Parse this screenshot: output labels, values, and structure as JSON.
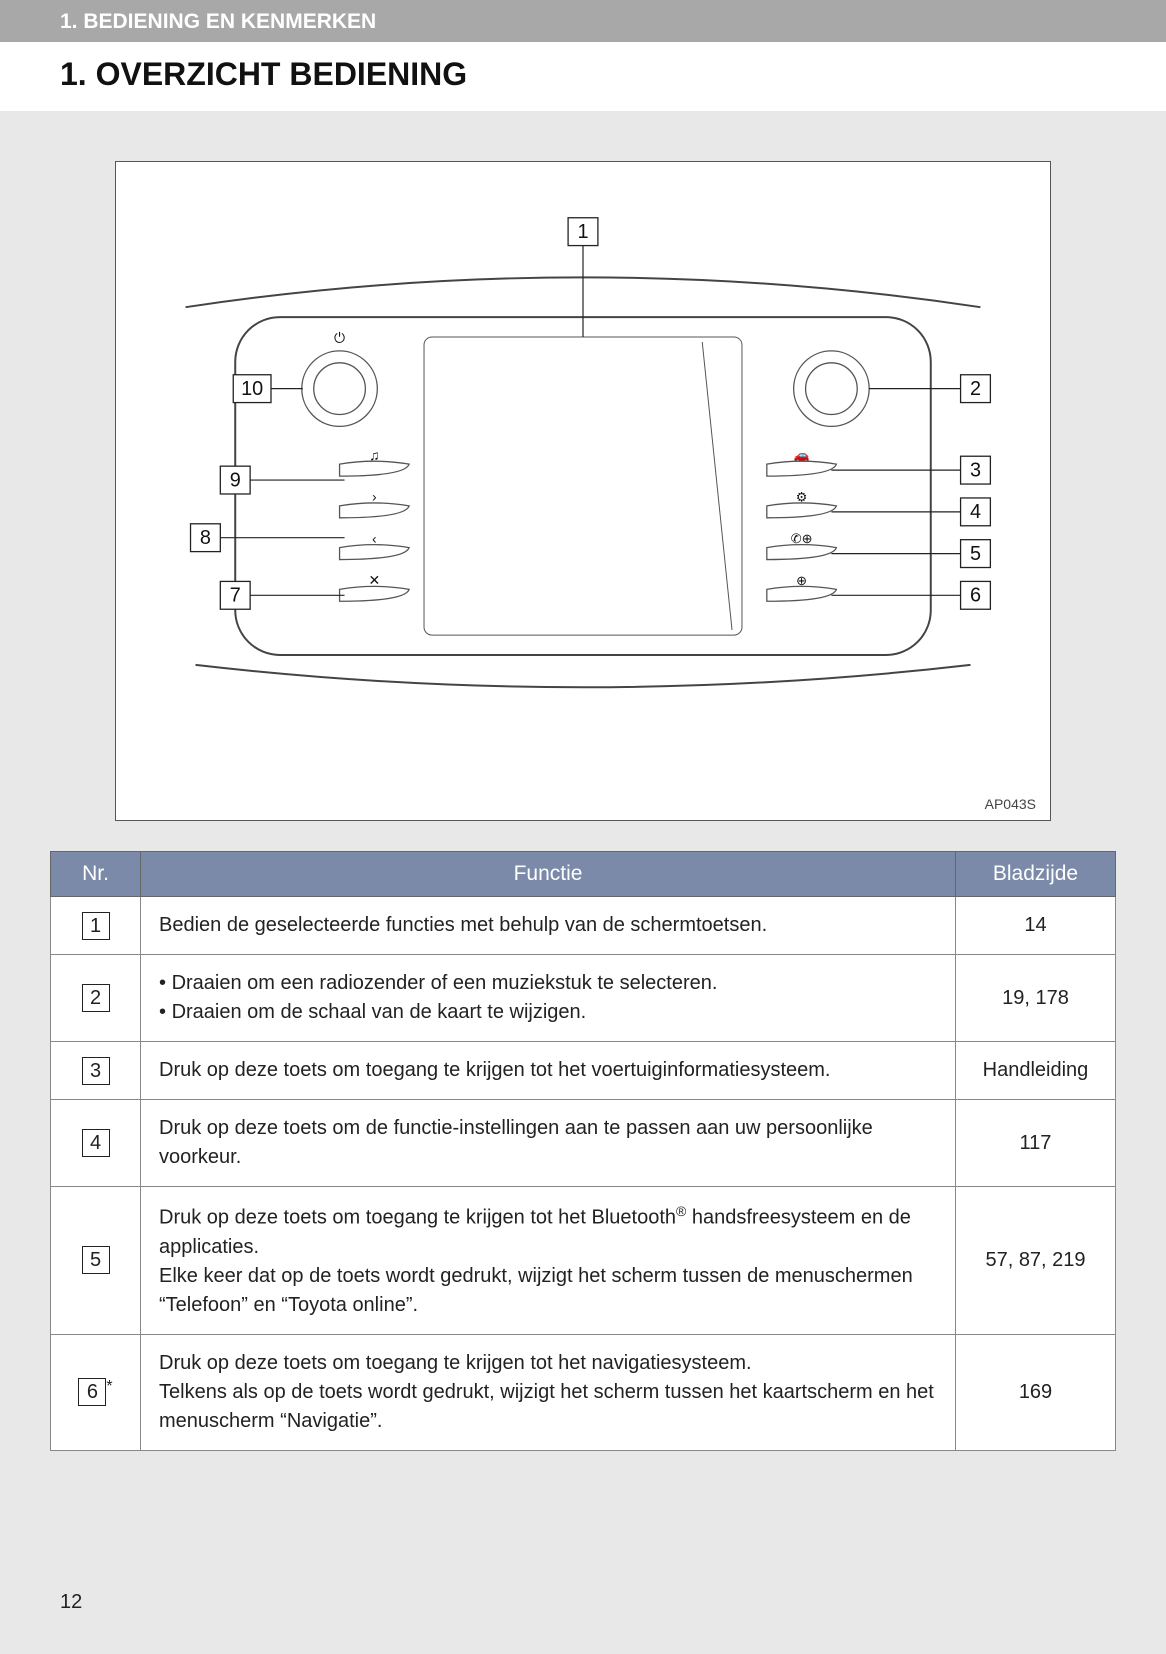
{
  "header": {
    "section_label": "1. BEDIENING EN KENMERKEN",
    "title": "1. OVERZICHT BEDIENING"
  },
  "diagram": {
    "code": "AP043S",
    "callouts": [
      "1",
      "2",
      "3",
      "4",
      "5",
      "6",
      "7",
      "8",
      "9",
      "10"
    ]
  },
  "table": {
    "headers": {
      "nr": "Nr.",
      "func": "Functie",
      "page": "Bladzijde"
    },
    "rows": [
      {
        "nr": "1",
        "star": false,
        "func_html": "Bedien de geselecteerde functies met behulp van de schermtoetsen.",
        "page": "14"
      },
      {
        "nr": "2",
        "star": false,
        "func_list": [
          "Draaien om een radiozender of een muziekstuk te selecteren.",
          "Draaien om de schaal van de kaart te wijzigen."
        ],
        "page": "19, 178"
      },
      {
        "nr": "3",
        "star": false,
        "func_html": "Druk op deze toets om toegang te krijgen tot het voertuiginformatiesys­teem.",
        "page": "Handleiding"
      },
      {
        "nr": "4",
        "star": false,
        "func_html": "Druk op deze toets om de functie-instellingen aan te passen aan uw per­soonlijke voorkeur.",
        "page": "117"
      },
      {
        "nr": "5",
        "star": false,
        "func_html": "Druk op deze toets om toegang te krijgen tot het Bluetooth<sup>®</sup> handsfree­systeem en de applicaties.<br>Elke keer dat op de toets wordt gedrukt, wijzigt het scherm tussen de menuschermen “Telefoon” en “Toyota online”.",
        "page": "57, 87, 219"
      },
      {
        "nr": "6",
        "star": true,
        "func_html": "Druk op deze toets om toegang te krijgen tot het navigatiesysteem.<br>Telkens als op de toets wordt gedrukt, wijzigt het scherm tussen het kaartscherm en het menuscherm “Navigatie”.",
        "page": "169"
      }
    ]
  },
  "page_number": "12",
  "colors": {
    "page_bg": "#e8e8e8",
    "header_bg": "#a8a8a8",
    "white": "#ffffff",
    "th_bg": "#7a8aa8",
    "text": "#222222",
    "border": "#666666"
  }
}
